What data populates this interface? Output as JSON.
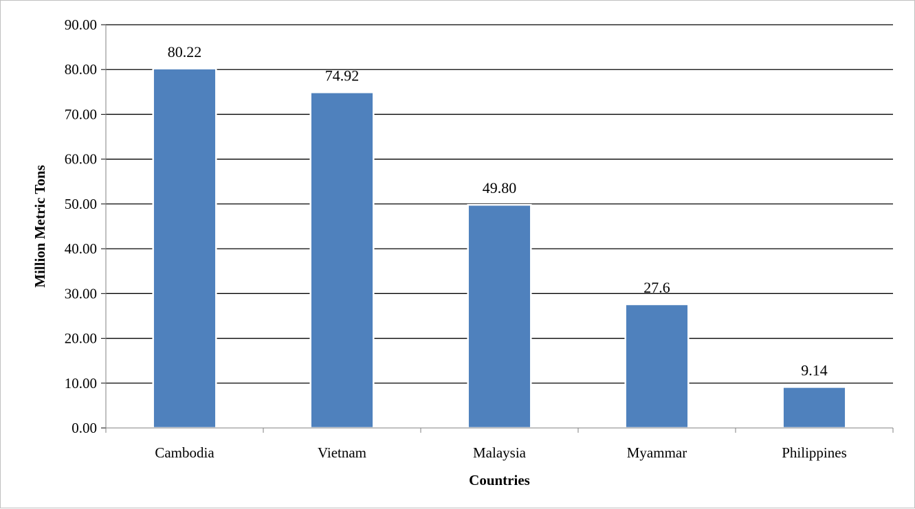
{
  "chart_data": {
    "type": "bar",
    "title": "",
    "categories": [
      "Cambodia",
      "Vietnam",
      "Malaysia",
      "Myammar",
      "Philippines"
    ],
    "values": [
      80.22,
      74.92,
      49.8,
      27.6,
      9.14
    ],
    "data_labels": [
      "80.22",
      "74.92",
      "49.80",
      "27.6",
      "9.14"
    ],
    "xlabel": "Countries",
    "ylabel": "Million Metric Tons",
    "ylim": [
      0,
      90
    ],
    "yticks": [
      "0.00",
      "10.00",
      "20.00",
      "30.00",
      "40.00",
      "50.00",
      "60.00",
      "70.00",
      "80.00",
      "90.00"
    ],
    "grid": true,
    "legend": "none",
    "bar_color": "#4f81bd"
  }
}
